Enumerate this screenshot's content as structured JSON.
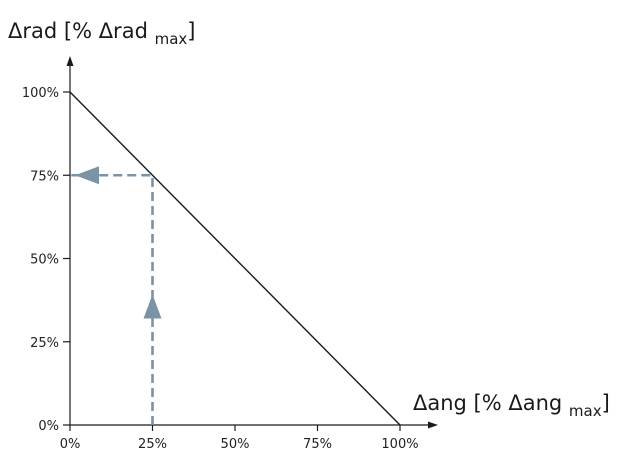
{
  "chart_data": {
    "type": "line",
    "ylabel": {
      "main": "Δrad [% Δrad ",
      "sub": "max",
      "close": "]"
    },
    "xlabel": {
      "main": "Δang [% Δang ",
      "sub": "max",
      "close": "]"
    },
    "xlim": [
      0,
      100
    ],
    "ylim": [
      0,
      100
    ],
    "x_ticks": [
      0,
      25,
      50,
      75,
      100
    ],
    "y_ticks": [
      0,
      25,
      50,
      75,
      100
    ],
    "x_tick_labels": [
      "0%",
      "25%",
      "50%",
      "75%",
      "100%"
    ],
    "y_tick_labels": [
      "0%",
      "25%",
      "50%",
      "75%",
      "100%"
    ],
    "grid": false,
    "series": [
      {
        "x": [
          0,
          100
        ],
        "y": [
          100,
          0
        ]
      }
    ],
    "annotations": [
      {
        "type": "dashed-arrow-path",
        "points": [
          [
            25,
            0
          ],
          [
            25,
            75
          ],
          [
            0,
            75
          ]
        ],
        "arrow_up_at": [
          25,
          35
        ],
        "arrow_left_at": [
          0,
          75
        ]
      }
    ],
    "colors": {
      "line": "#1a1a1a",
      "axis": "#1a1a1a",
      "annotation": "#7a93a5"
    }
  }
}
